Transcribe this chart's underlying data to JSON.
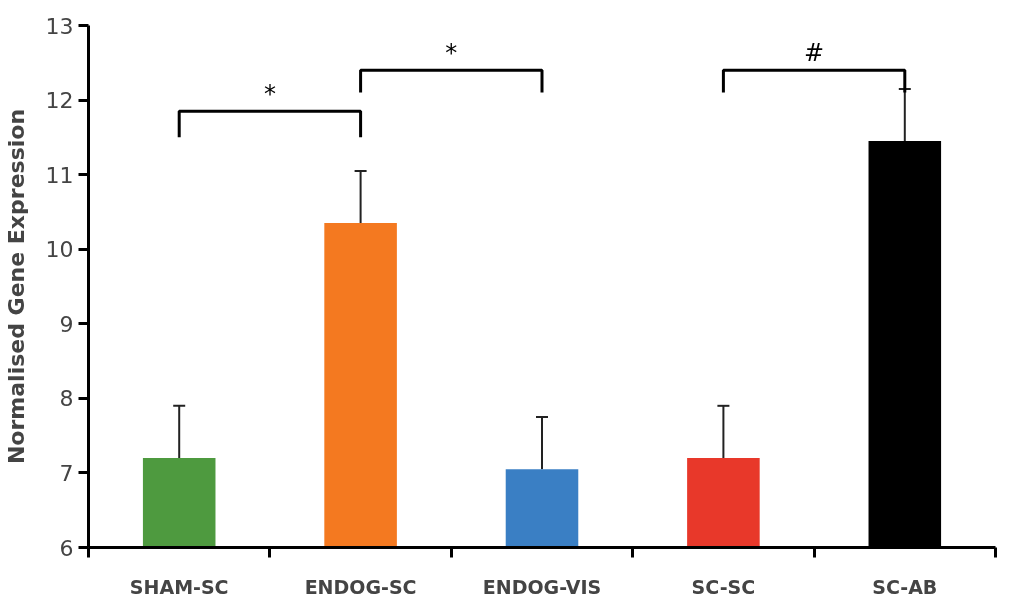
{
  "chart_data": {
    "type": "bar",
    "ylabel": "Normalised Gene Expression",
    "categories": [
      "SHAM-SC",
      "ENDOG-SC",
      "ENDOG-VIS",
      "SC-SC",
      "SC-AB"
    ],
    "values": [
      7.2,
      10.35,
      7.05,
      7.2,
      11.45
    ],
    "colors": [
      "#4e9a3f",
      "#f47920",
      "#3a7fc4",
      "#e8382a",
      "#000000"
    ],
    "errors": [
      [
        7.2,
        7.9
      ],
      [
        10.35,
        11.05
      ],
      [
        7.05,
        7.75
      ],
      [
        7.2,
        7.9
      ],
      [
        11.45,
        12.15
      ]
    ],
    "ylim": [
      6,
      13
    ],
    "yticks": [
      6,
      7,
      8,
      9,
      10,
      11,
      12,
      13
    ],
    "annotations": [
      "*",
      "*",
      "#"
    ],
    "grid": false
  }
}
